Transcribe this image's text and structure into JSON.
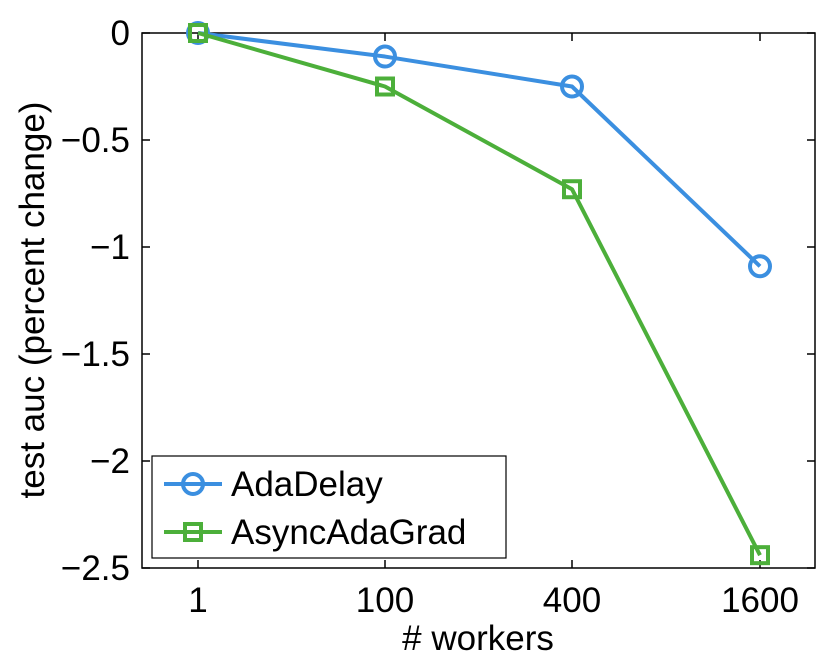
{
  "chart_data": {
    "type": "line",
    "categories": [
      "1",
      "100",
      "400",
      "1600"
    ],
    "series": [
      {
        "name": "AdaDelay",
        "marker": "circle",
        "color": "#3b8fe0",
        "values": [
          0,
          -0.11,
          -0.25,
          -1.09
        ]
      },
      {
        "name": "AsyncAdaGrad",
        "marker": "square",
        "color": "#4caf3a",
        "values": [
          0,
          -0.25,
          -0.73,
          -2.44
        ]
      }
    ],
    "xlabel": "# workers",
    "ylabel": "test auc (percent change)",
    "ylim": [
      -2.5,
      0
    ],
    "yticks": [
      "0",
      "−0.5",
      "−1",
      "−1.5",
      "−2",
      "−2.5"
    ],
    "ytick_values": [
      0,
      -0.5,
      -1,
      -1.5,
      -2,
      -2.5
    ],
    "grid": false,
    "legend_position": "bottom-left"
  }
}
